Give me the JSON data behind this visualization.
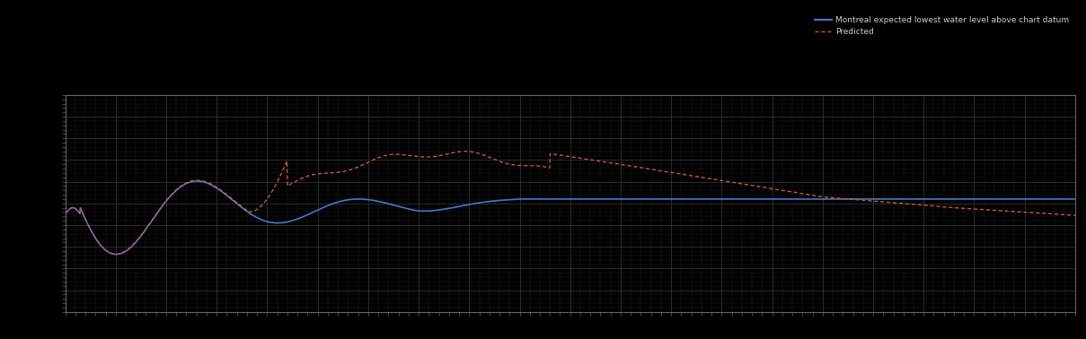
{
  "background_color": "#000000",
  "plot_bg_color": "#000000",
  "grid_color": "#333333",
  "line1_color": "#4477cc",
  "line2_color": "#cc5533",
  "line1_label": "Montreal expected lowest water level above chart datum",
  "line2_label": "Predicted",
  "figsize": [
    12.09,
    3.78
  ],
  "dpi": 100,
  "xlim": [
    0,
    100
  ],
  "ylim": [
    0,
    10
  ],
  "x_major_ticks": 20,
  "y_major_ticks": 10,
  "x_minor_per_major": 5,
  "y_minor_per_major": 5
}
